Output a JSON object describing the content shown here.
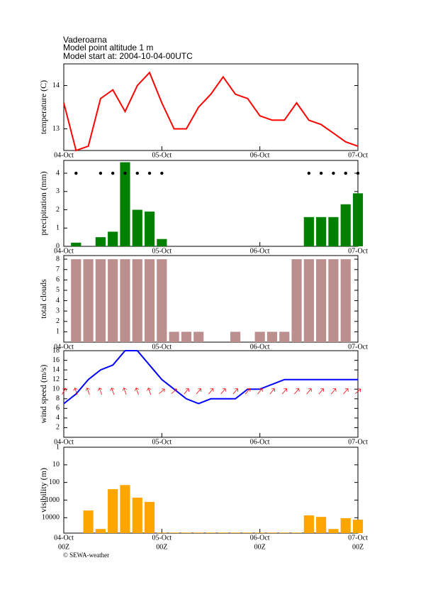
{
  "header": {
    "lines": [
      "Vaderoarna",
      "Model point altitude  1 m",
      "Model start at: 2004-10-04-00UTC"
    ]
  },
  "footer": "© SEWA-weather",
  "chart_data": [
    {
      "type": "line",
      "ylabel": "temperature (C)",
      "x": [
        0,
        3,
        6,
        9,
        12,
        15,
        18,
        21,
        24,
        27,
        30,
        33,
        36,
        39,
        42,
        45,
        48,
        51,
        54,
        57,
        60,
        63,
        66,
        69,
        72
      ],
      "xlim": [
        0,
        72
      ],
      "xticks": [
        {
          "value": 0,
          "label": "04-Oct"
        },
        {
          "value": 24,
          "label": "05-Oct"
        },
        {
          "value": 48,
          "label": "06-Oct"
        },
        {
          "value": 72,
          "label": "07-Oct"
        }
      ],
      "ylim": [
        12.5,
        14.5
      ],
      "yticks": [
        13,
        14
      ],
      "series": [
        {
          "type": "line",
          "color": "#ff0000",
          "values": [
            13.6,
            12.5,
            12.6,
            13.7,
            13.9,
            13.4,
            14.0,
            14.3,
            13.6,
            13.0,
            13.0,
            13.5,
            13.8,
            14.2,
            13.8,
            13.7,
            13.3,
            13.2,
            13.2,
            13.6,
            13.2,
            13.1,
            12.9,
            12.7,
            12.6
          ]
        }
      ]
    },
    {
      "type": "bar",
      "ylabel": "precipitation (mm)",
      "x": [
        0,
        3,
        6,
        9,
        12,
        15,
        18,
        21,
        24,
        27,
        30,
        33,
        36,
        39,
        42,
        45,
        48,
        51,
        54,
        57,
        60,
        63,
        66,
        69,
        72
      ],
      "xlim": [
        0,
        72
      ],
      "xticks": [
        {
          "value": 0,
          "label": "04-Oct"
        },
        {
          "value": 24,
          "label": "05-Oct"
        },
        {
          "value": 48,
          "label": "06-Oct"
        },
        {
          "value": 72,
          "label": "07-Oct"
        }
      ],
      "ylim": [
        0,
        4.7
      ],
      "yticks": [
        0,
        1,
        2,
        3,
        4
      ],
      "series": [
        {
          "type": "bar",
          "color": "#008000",
          "values": [
            null,
            0.2,
            0,
            0.5,
            0.8,
            4.6,
            2.0,
            1.9,
            0.4,
            0,
            0,
            0,
            0,
            0,
            0,
            0,
            0,
            0,
            0,
            0,
            1.6,
            1.6,
            1.6,
            2.3,
            2.9
          ]
        },
        {
          "type": "scatter",
          "color": "#000000",
          "values": [
            null,
            4,
            null,
            4,
            4,
            4,
            4,
            4,
            4,
            null,
            null,
            null,
            null,
            null,
            null,
            null,
            null,
            null,
            null,
            null,
            4,
            4,
            4,
            4,
            4
          ]
        }
      ]
    },
    {
      "type": "bar",
      "ylabel": "total clouds",
      "x": [
        0,
        3,
        6,
        9,
        12,
        15,
        18,
        21,
        24,
        27,
        30,
        33,
        36,
        39,
        42,
        45,
        48,
        51,
        54,
        57,
        60,
        63,
        66,
        69,
        72
      ],
      "xlim": [
        0,
        72
      ],
      "xticks": [
        {
          "value": 0,
          "label": "04-Oct"
        },
        {
          "value": 24,
          "label": "05-Oct"
        },
        {
          "value": 48,
          "label": "06-Oct"
        },
        {
          "value": 72,
          "label": "07-Oct"
        }
      ],
      "ylim": [
        0,
        8.35
      ],
      "yticks": [
        1,
        2,
        3,
        4,
        5,
        6,
        7,
        8
      ],
      "series": [
        {
          "type": "bar",
          "color": "#bc8f8f",
          "values": [
            null,
            8,
            8,
            8,
            8,
            8,
            8,
            8,
            8,
            1,
            1,
            1,
            0,
            0,
            1,
            0,
            1,
            1,
            1,
            8,
            8,
            8,
            8,
            8,
            null
          ]
        }
      ]
    },
    {
      "type": "line",
      "ylabel": "wind speed (m/s)",
      "x": [
        0,
        3,
        6,
        9,
        12,
        15,
        18,
        21,
        24,
        27,
        30,
        33,
        36,
        39,
        42,
        45,
        48,
        51,
        54,
        57,
        60,
        63,
        66,
        69,
        72
      ],
      "xlim": [
        0,
        72
      ],
      "xticks": [
        {
          "value": 0,
          "label": "04-Oct"
        },
        {
          "value": 24,
          "label": "05-Oct"
        },
        {
          "value": 48,
          "label": "06-Oct"
        },
        {
          "value": 72,
          "label": "07-Oct"
        }
      ],
      "ylim": [
        0,
        18
      ],
      "yticks": [
        2,
        4,
        6,
        8,
        10,
        12,
        14,
        16,
        18
      ],
      "series": [
        {
          "type": "line",
          "color": "#0000ff",
          "values": [
            7,
            9,
            12,
            14,
            15,
            18,
            18,
            15,
            12,
            10,
            8,
            7,
            8,
            8,
            8,
            10,
            10,
            11,
            12,
            12,
            12,
            12,
            12,
            12,
            12
          ]
        },
        {
          "type": "arrow",
          "color": "#ff0000",
          "values": [
            30,
            340,
            340,
            340,
            340,
            340,
            340,
            340,
            50,
            50,
            40,
            40,
            40,
            40,
            40,
            40,
            40,
            40,
            40,
            40,
            40,
            40,
            40,
            40,
            50
          ]
        }
      ]
    },
    {
      "type": "bar",
      "ylabel": "visibility (m)",
      "log": true,
      "inverted": true,
      "x": [
        0,
        3,
        6,
        9,
        12,
        15,
        18,
        21,
        24,
        27,
        30,
        33,
        36,
        39,
        42,
        45,
        48,
        51,
        54,
        57,
        60,
        63,
        66,
        69,
        72
      ],
      "xlim": [
        0,
        72
      ],
      "xticks": [
        {
          "value": 0,
          "label": "04-Oct"
        },
        {
          "value": 24,
          "label": "05-Oct"
        },
        {
          "value": 48,
          "label": "06-Oct"
        },
        {
          "value": 72,
          "label": "07-Oct"
        }
      ],
      "xtick_sublabels": [
        "00Z",
        "00Z",
        "00Z",
        "00Z"
      ],
      "ylim": [
        1,
        75000
      ],
      "yticks": [
        1,
        10,
        100,
        1000,
        10000
      ],
      "series": [
        {
          "type": "bar",
          "color": "#ffa500",
          "values": [
            null,
            75000,
            3900,
            44000,
            240,
            140,
            730,
            1270,
            70000,
            70000,
            70000,
            70000,
            70000,
            70000,
            70000,
            70000,
            70000,
            70000,
            70000,
            70000,
            7400,
            9000,
            44000,
            10700,
            13000
          ]
        }
      ]
    }
  ]
}
